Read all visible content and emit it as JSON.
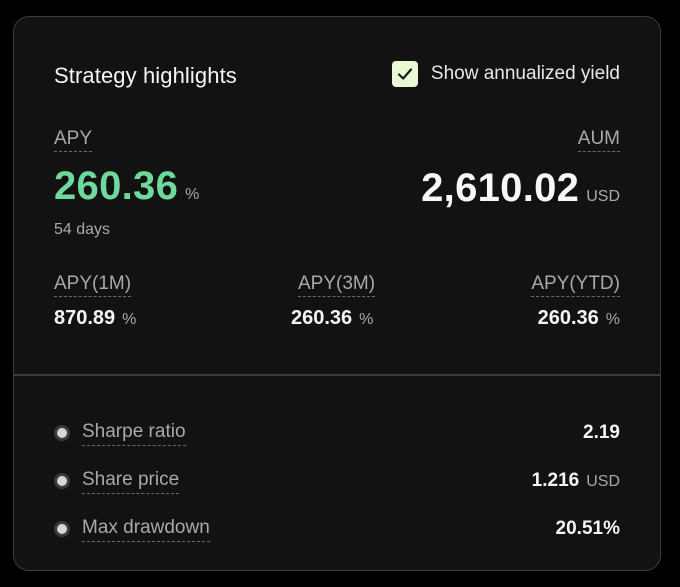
{
  "header": {
    "title": "Strategy highlights",
    "toggle_label": "Show annualized yield",
    "toggle_checked": true
  },
  "apy": {
    "label": "APY",
    "value": "260.36",
    "unit": "%",
    "period": "54 days",
    "color": "#6fd89d"
  },
  "aum": {
    "label": "AUM",
    "value": "2,610.02",
    "unit": "USD"
  },
  "sub_apys": [
    {
      "label": "APY(1M)",
      "value": "870.89",
      "unit": "%"
    },
    {
      "label": "APY(3M)",
      "value": "260.36",
      "unit": "%"
    },
    {
      "label": "APY(YTD)",
      "value": "260.36",
      "unit": "%"
    }
  ],
  "metrics": [
    {
      "label": "Sharpe ratio",
      "value": "2.19",
      "unit": ""
    },
    {
      "label": "Share price",
      "value": "1.216",
      "unit": "USD"
    },
    {
      "label": "Max drawdown",
      "value": "20.51%",
      "unit": ""
    }
  ],
  "icons": {
    "checkbox": "checkmark-icon",
    "bullet": "bullet-dot-icon"
  }
}
